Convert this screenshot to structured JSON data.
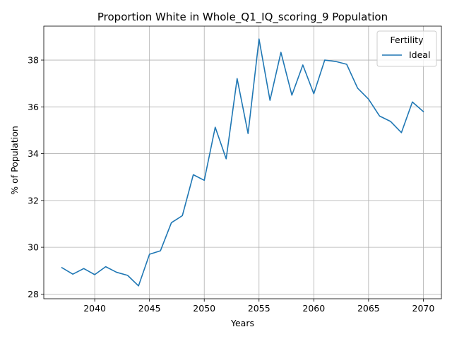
{
  "chart_data": {
    "type": "line",
    "title": "Proportion White in Whole_Q1_IQ_scoring_9 Population",
    "xlabel": "Years",
    "ylabel": "% of Population",
    "xlim": [
      2035.35,
      2071.65
    ],
    "ylim": [
      27.8,
      39.45
    ],
    "xticks": [
      2040,
      2045,
      2050,
      2055,
      2060,
      2065,
      2070
    ],
    "yticks": [
      28,
      30,
      32,
      34,
      36,
      38
    ],
    "grid": true,
    "legend": {
      "title": "Fertility",
      "placement": "top-right"
    },
    "series": [
      {
        "name": "Ideal",
        "color": "#1f77b4",
        "x": [
          2037,
          2038,
          2039,
          2040,
          2041,
          2042,
          2043,
          2044,
          2045,
          2046,
          2047,
          2048,
          2049,
          2050,
          2051,
          2052,
          2053,
          2054,
          2055,
          2056,
          2057,
          2058,
          2059,
          2060,
          2061,
          2062,
          2063,
          2064,
          2065,
          2066,
          2067,
          2068,
          2069,
          2070
        ],
        "y": [
          29.13,
          28.85,
          29.09,
          28.83,
          29.17,
          28.93,
          28.8,
          28.35,
          29.7,
          29.85,
          31.05,
          31.35,
          33.1,
          32.86,
          35.13,
          33.78,
          37.21,
          34.86,
          38.9,
          36.28,
          38.33,
          36.5,
          37.79,
          36.56,
          38.0,
          37.94,
          37.82,
          36.8,
          36.33,
          35.61,
          35.38,
          34.9,
          36.21,
          35.8
        ]
      }
    ]
  }
}
